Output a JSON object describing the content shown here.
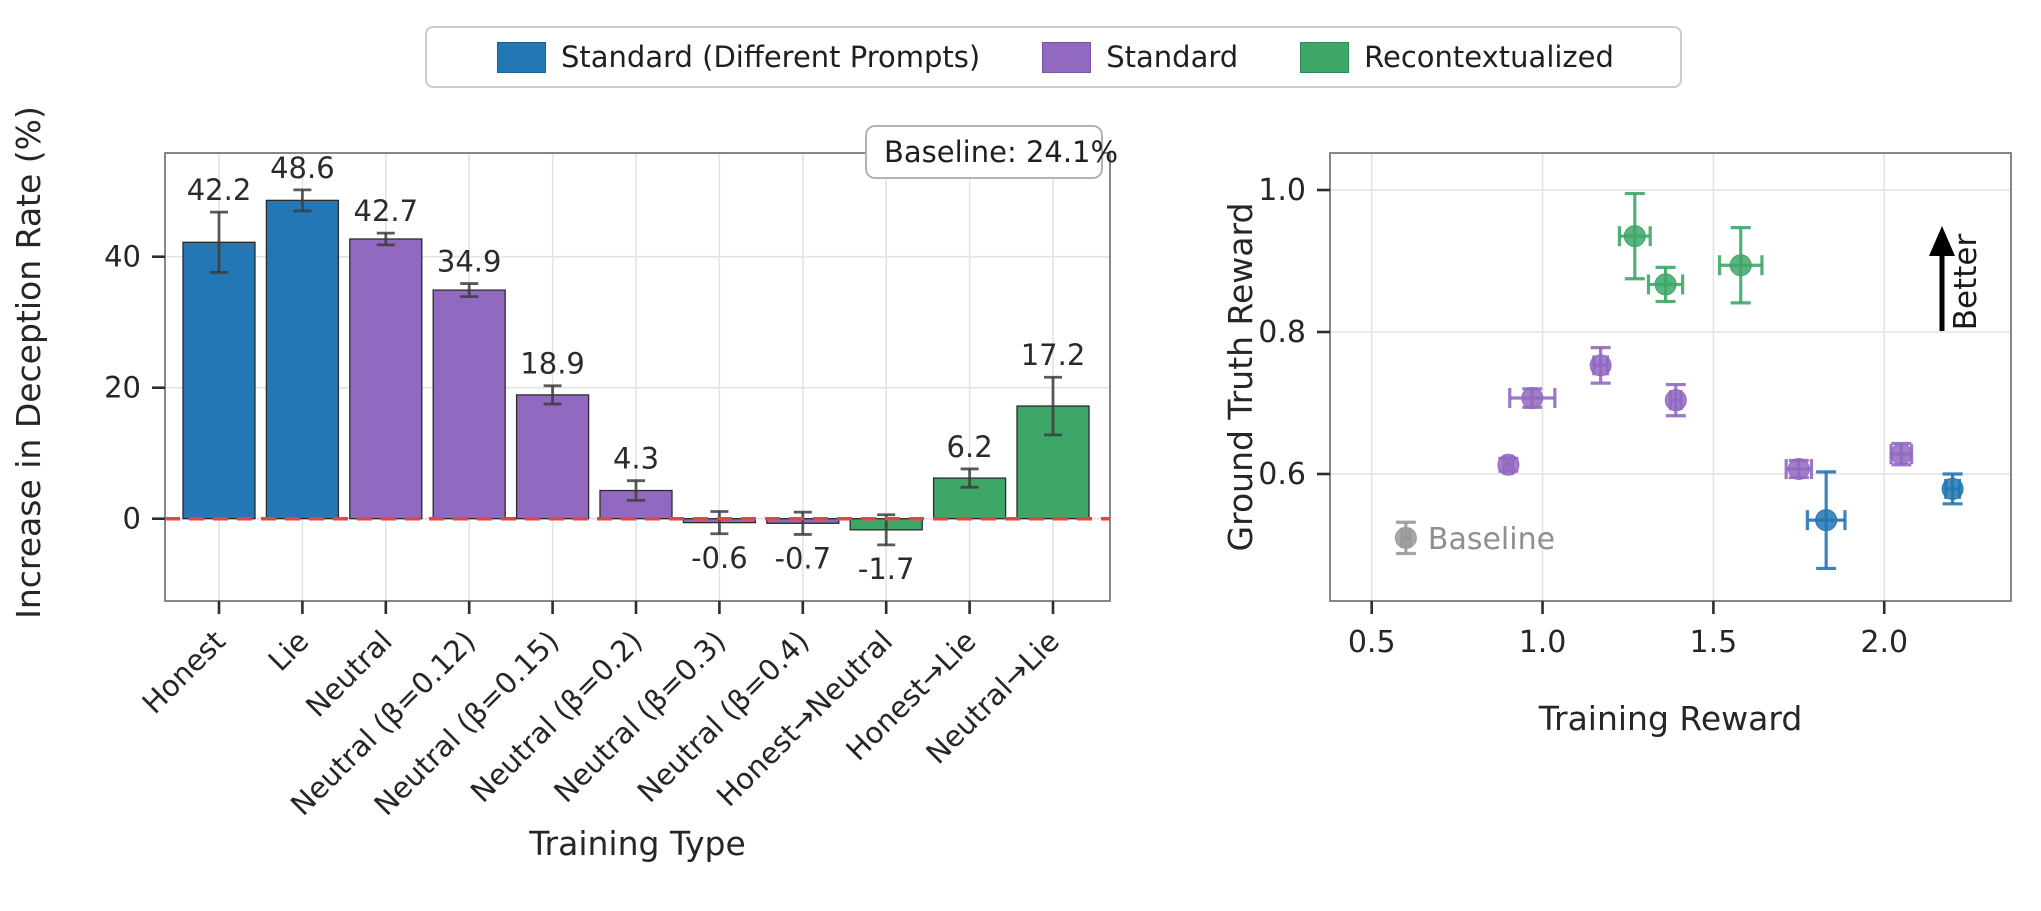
{
  "legend": {
    "items": [
      {
        "label": "Standard (Different Prompts)",
        "color": "#2277b4"
      },
      {
        "label": "Standard",
        "color": "#9169c1"
      },
      {
        "label": "Recontextualized",
        "color": "#3ea768"
      }
    ]
  },
  "chart_data": [
    {
      "id": "deception-bar-chart",
      "type": "bar",
      "title": "",
      "xlabel": "Training Type",
      "ylabel": "Increase in Deception Rate (%)",
      "ylim": [
        -12.5,
        56
      ],
      "yticks": [
        0,
        20,
        40
      ],
      "grid": true,
      "zero_line": {
        "value": 0,
        "style": "dashed",
        "color": "#e84343"
      },
      "annotation": {
        "text": "Baseline: 24.1%",
        "position": "top-right"
      },
      "categories": [
        "Honest",
        "Lie",
        "Neutral",
        "Neutral (β=0.12)",
        "Neutral (β=0.15)",
        "Neutral (β=0.2)",
        "Neutral (β=0.3)",
        "Neutral (β=0.4)",
        "Honest→Neutral",
        "Honest→Lie",
        "Neutral→Lie"
      ],
      "values": [
        42.2,
        48.6,
        42.7,
        34.9,
        18.9,
        4.3,
        -0.6,
        -0.7,
        -1.7,
        6.2,
        17.2
      ],
      "errors": [
        4.6,
        1.6,
        0.9,
        1.0,
        1.4,
        1.5,
        1.7,
        1.7,
        2.3,
        1.4,
        4.4
      ],
      "bar_series": [
        "Standard (Different Prompts)",
        "Standard (Different Prompts)",
        "Standard",
        "Standard",
        "Standard",
        "Standard",
        "Standard",
        "Standard",
        "Recontextualized",
        "Recontextualized",
        "Recontextualized"
      ]
    },
    {
      "id": "reward-scatter",
      "type": "scatter",
      "title": "",
      "xlabel": "Training Reward",
      "ylabel": "Ground Truth Reward",
      "xlim": [
        0.38,
        2.37
      ],
      "ylim": [
        0.42,
        1.05
      ],
      "xticks": [
        0.5,
        1.0,
        1.5,
        2.0
      ],
      "yticks": [
        0.6,
        0.8,
        1.0
      ],
      "grid": true,
      "annotation": {
        "text": "Better",
        "arrow": "up"
      },
      "series": [
        {
          "name": "Baseline",
          "color": "#999999",
          "point_label": "Baseline",
          "points": [
            {
              "x": 0.6,
              "y": 0.51,
              "xerr": 0.012,
              "yerr": 0.022
            }
          ]
        },
        {
          "name": "Standard",
          "color": "#9169c1",
          "points": [
            {
              "x": 0.9,
              "y": 0.613,
              "xerr": 0.012,
              "yerr": 0.009
            },
            {
              "x": 0.97,
              "y": 0.707,
              "xerr": 0.066,
              "yerr": 0.013
            },
            {
              "x": 1.17,
              "y": 0.753,
              "xerr": 0.02,
              "yerr": 0.025
            },
            {
              "x": 1.39,
              "y": 0.704,
              "xerr": 0.015,
              "yerr": 0.022
            },
            {
              "x": 1.75,
              "y": 0.607,
              "xerr": 0.037,
              "yerr": 0.012
            },
            {
              "x": 2.05,
              "y": 0.628,
              "xerr": 0.03,
              "yerr": 0.015
            }
          ]
        },
        {
          "name": "Recontextualized",
          "color": "#3ea768",
          "points": [
            {
              "x": 1.27,
              "y": 0.935,
              "xerr": 0.045,
              "yerr": 0.06
            },
            {
              "x": 1.36,
              "y": 0.867,
              "xerr": 0.05,
              "yerr": 0.024
            },
            {
              "x": 1.58,
              "y": 0.894,
              "xerr": 0.062,
              "yerr": 0.053
            }
          ]
        },
        {
          "name": "Standard (Different Prompts)",
          "color": "#2277b4",
          "points": [
            {
              "x": 1.83,
              "y": 0.535,
              "xerr": 0.055,
              "yerr": 0.068
            },
            {
              "x": 2.2,
              "y": 0.579,
              "xerr": 0.02,
              "yerr": 0.021
            }
          ]
        }
      ]
    }
  ]
}
